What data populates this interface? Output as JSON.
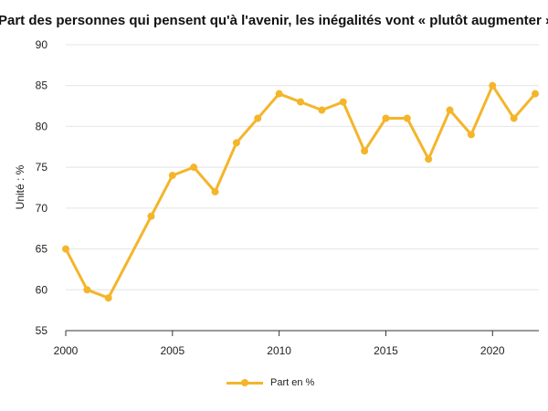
{
  "chart_data": {
    "type": "line",
    "title": "Part des personnes qui pensent qu'à l'avenir, les inégalités vont « plutôt augmenter » (en %)",
    "ylabel": "Unité : %",
    "xlabel": "",
    "xlim": [
      2000,
      2022
    ],
    "ylim": [
      55,
      90
    ],
    "x_ticks": [
      2000,
      2005,
      2010,
      2015,
      2020
    ],
    "y_ticks": [
      55,
      60,
      65,
      70,
      75,
      80,
      85,
      90
    ],
    "grid": true,
    "legend_position": "bottom",
    "color": "#f4b52a",
    "series": [
      {
        "name": "Part en %",
        "x": [
          2000,
          2001,
          2002,
          2004,
          2005,
          2006,
          2007,
          2008,
          2009,
          2010,
          2011,
          2012,
          2013,
          2014,
          2015,
          2016,
          2017,
          2018,
          2019,
          2020,
          2021,
          2022
        ],
        "values": [
          65,
          60,
          59,
          69,
          74,
          75,
          72,
          78,
          81,
          84,
          83,
          82,
          83,
          77,
          81,
          81,
          76,
          82,
          79,
          85,
          81,
          84
        ]
      }
    ]
  }
}
